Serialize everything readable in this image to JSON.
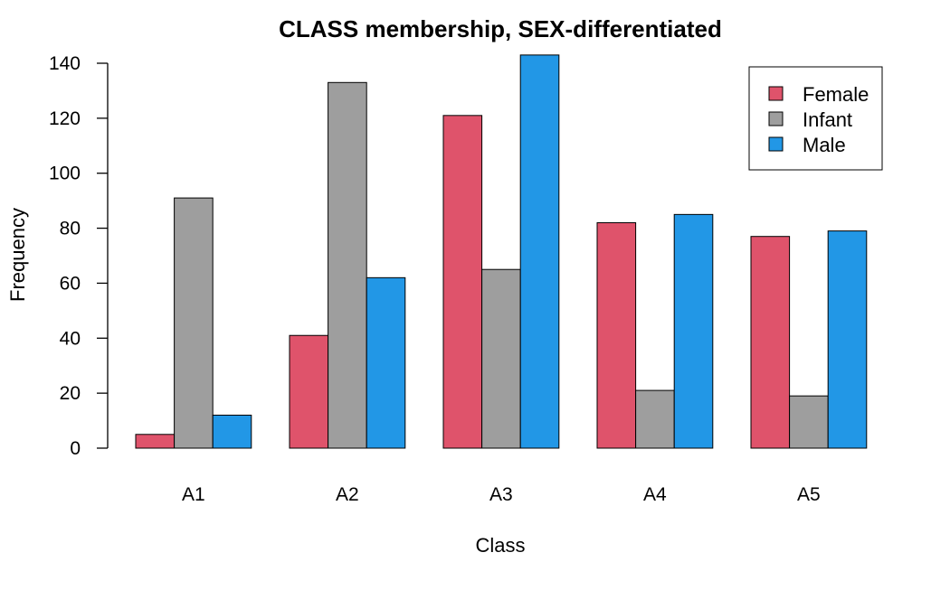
{
  "chart_data": {
    "type": "bar",
    "title": "CLASS membership, SEX-differentiated",
    "xlabel": "Class",
    "ylabel": "Frequency",
    "categories": [
      "A1",
      "A2",
      "A3",
      "A4",
      "A5"
    ],
    "series": [
      {
        "name": "Female",
        "color": "#DF536B",
        "values": [
          5,
          41,
          121,
          82,
          77
        ]
      },
      {
        "name": "Infant",
        "color": "#9E9E9E",
        "values": [
          91,
          133,
          65,
          21,
          19
        ]
      },
      {
        "name": "Male",
        "color": "#2297E6",
        "values": [
          12,
          62,
          143,
          85,
          79
        ]
      }
    ],
    "ylim": [
      0,
      140
    ],
    "yticks": [
      0,
      20,
      40,
      60,
      80,
      100,
      120,
      140
    ],
    "grouping": "side-by-side",
    "grid": false,
    "legend_position": "top-right"
  }
}
